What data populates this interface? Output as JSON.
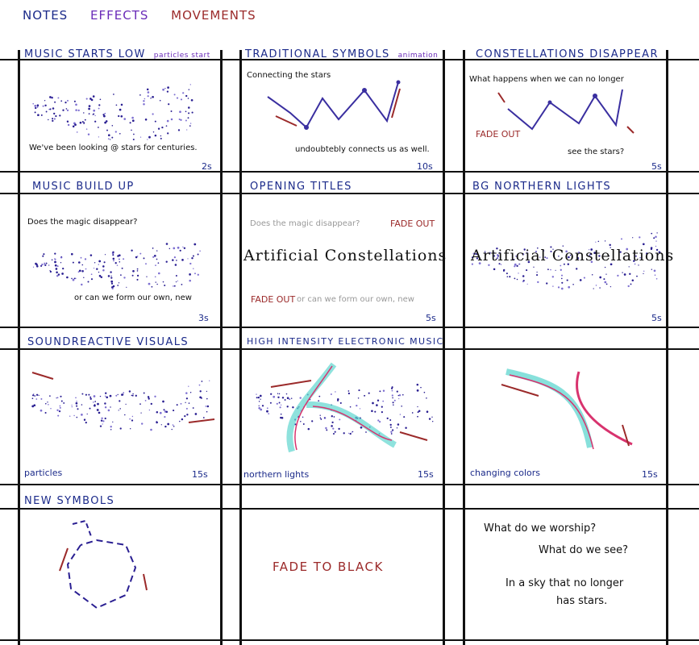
{
  "legend": {
    "notes": "NOTES",
    "effects": "EFFECTS",
    "movements": "MOVEMENTS"
  },
  "colors": {
    "notes": "#1b2a8a",
    "effects": "#6a2bb8",
    "movements": "#9b2a2a",
    "teal": "#5fd6cf",
    "pink": "#d8336e"
  },
  "p1": {
    "title": "MUSIC STARTS LOW",
    "effect": "particles start",
    "caption": "We've been looking @ stars for centuries.",
    "duration": "2s"
  },
  "p2": {
    "title": "TRADITIONAL SYMBOLS",
    "effect": "animation",
    "caption_top": "Connecting the stars",
    "caption_bottom": "undoubtebly connects us as well.",
    "duration": "10s"
  },
  "p3": {
    "title": "CONSTELLATIONS DISAPPEAR",
    "caption_top": "What happens when we can no longer",
    "fade": "FADE OUT",
    "caption_bottom": "see the stars?",
    "duration": "5s"
  },
  "p4": {
    "title": "MUSIC BUILD UP",
    "caption_top": "Does the magic disappear?",
    "caption_bottom": "or can we form our own, new",
    "duration": "3s"
  },
  "p5": {
    "title": "OPENING TITLES",
    "caption_top": "Does the magic disappear?",
    "fade_top": "FADE OUT",
    "main_title": "Artificial Constellations",
    "fade_bottom": "FADE OUT",
    "caption_bottom": "or can we form our own, new",
    "duration": "5s"
  },
  "p6": {
    "title": "BG NORTHERN LIGHTS",
    "main_title": "Artificial Constellations",
    "duration": "5s"
  },
  "p7": {
    "title": "SOUNDREACTIVE VISUALS",
    "note": "particles",
    "duration": "15s"
  },
  "p8": {
    "title": "HIGH INTENSITY ELECTRONIC MUSIC",
    "note": "northern lights",
    "duration": "15s"
  },
  "p9": {
    "note": "changing colors",
    "duration": "15s"
  },
  "p10": {
    "title": "NEW SYMBOLS"
  },
  "p11": {
    "text": "FADE TO BLACK"
  },
  "p12": {
    "line1": "What do we worship?",
    "line2": "What do we see?",
    "line3": "In a sky that no longer",
    "line4": "has stars."
  }
}
